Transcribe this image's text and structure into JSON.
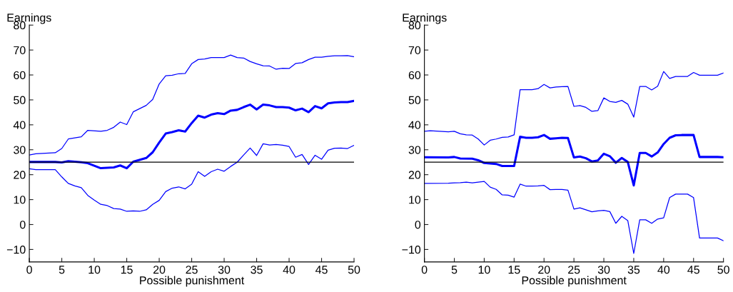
{
  "chart_data": [
    {
      "type": "line",
      "xlabel": "Possible punishment",
      "ylabel": "Earnings",
      "xlim": [
        0,
        50
      ],
      "ylim": [
        -15,
        80
      ],
      "xticks": [
        0,
        5,
        10,
        15,
        20,
        25,
        30,
        35,
        40,
        45,
        50
      ],
      "yticks": [
        -10,
        0,
        10,
        20,
        30,
        40,
        50,
        60,
        70,
        80
      ],
      "grid": false,
      "legend": false,
      "ref_lines": [
        {
          "axis": "y",
          "value": 25,
          "color": "#000000"
        }
      ],
      "series": [
        {
          "color": "#0000ff",
          "x": [
            0,
            1,
            4,
            5,
            6,
            8,
            9,
            11,
            12,
            13,
            14,
            15,
            16,
            18,
            19,
            20,
            21,
            22,
            23,
            24,
            25,
            26,
            27,
            28,
            29,
            30,
            31,
            32,
            33,
            34,
            35,
            36,
            37,
            38,
            39,
            40,
            41,
            42,
            43,
            44,
            45,
            46,
            47,
            48,
            49,
            50
          ],
          "values": [
            27.9,
            28.4,
            28.8,
            30.5,
            34.3,
            35.2,
            37.8,
            37.4,
            37.8,
            39,
            41.1,
            40.1,
            45.2,
            47.8,
            50.2,
            56.4,
            59.7,
            59.9,
            60.5,
            60.6,
            64.5,
            66.2,
            66.4,
            67,
            67,
            67,
            68,
            67,
            66.8,
            65.4,
            64.5,
            63.7,
            63.6,
            62.3,
            62.7,
            62.6,
            64.6,
            64.9,
            66.2,
            67.1,
            67.1,
            67.5,
            67.7,
            67.7,
            67.8,
            67.3
          ]
        },
        {
          "color": "#0000ff",
          "x": [
            0,
            4,
            5,
            6,
            8,
            9,
            11,
            13,
            14,
            15,
            16,
            18,
            19,
            20,
            21,
            22,
            23,
            24,
            25,
            26,
            27,
            28,
            29,
            30,
            31,
            32,
            33,
            34,
            35,
            36,
            37,
            38,
            39,
            40,
            41,
            42,
            43,
            44,
            45,
            46,
            47,
            48,
            49,
            50
          ],
          "values": [
            25.1,
            25.1,
            24.9,
            25.4,
            25,
            24.6,
            22.6,
            22.9,
            23.7,
            22.6,
            25.2,
            26.7,
            29,
            32.9,
            36.5,
            37.1,
            37.8,
            37.3,
            40.7,
            43.7,
            42.9,
            44.1,
            44.7,
            44.3,
            45.7,
            46,
            47.1,
            48.1,
            46.2,
            48.1,
            47.8,
            47.1,
            47.1,
            46.9,
            45.8,
            46.5,
            45.1,
            47.5,
            46.6,
            48.6,
            49,
            49.1,
            49.1,
            49.6
          ]
        },
        {
          "color": "#0000ff",
          "x": [
            0,
            1,
            4,
            5,
            6,
            7,
            8,
            9,
            10,
            11,
            12,
            13,
            14,
            15,
            16,
            17,
            18,
            19,
            20,
            21,
            22,
            23,
            24,
            25,
            26,
            27,
            28,
            29,
            30,
            31,
            32,
            33,
            34,
            35,
            36,
            37,
            38,
            39,
            40,
            41,
            42,
            43,
            44,
            45,
            46,
            47,
            48,
            49,
            50
          ],
          "values": [
            22.4,
            22,
            22,
            19.1,
            16.5,
            15.5,
            14.8,
            11.7,
            9.8,
            8.1,
            7.6,
            6.4,
            6.2,
            5.3,
            5.5,
            5.3,
            5.9,
            8.1,
            9.7,
            13.2,
            14.6,
            15.1,
            14.3,
            16.2,
            21.2,
            19.3,
            21.2,
            22.2,
            21.4,
            23.3,
            25,
            27.9,
            30.7,
            27.7,
            32.4,
            31.9,
            32.1,
            31.8,
            31.3,
            27,
            28.1,
            24.1,
            27.8,
            26.2,
            29.8,
            30.6,
            30.7,
            30.5,
            31.8
          ]
        }
      ]
    },
    {
      "type": "line",
      "xlabel": "Possible punishment",
      "ylabel": "Earnings",
      "xlim": [
        0,
        50
      ],
      "ylim": [
        -15,
        80
      ],
      "xticks": [
        0,
        5,
        10,
        15,
        20,
        25,
        30,
        35,
        40,
        45,
        50
      ],
      "yticks": [
        -10,
        0,
        10,
        20,
        30,
        40,
        50,
        60,
        70,
        80
      ],
      "grid": false,
      "legend": false,
      "ref_lines": [
        {
          "axis": "y",
          "value": 25,
          "color": "#000000"
        }
      ],
      "series": [
        {
          "color": "#0000ff",
          "x": [
            0,
            1,
            4,
            5,
            6,
            7,
            8,
            9,
            10,
            11,
            12,
            13,
            14,
            15,
            16,
            17,
            18,
            19,
            20,
            21,
            22,
            23,
            24,
            25,
            26,
            27,
            28,
            29,
            30,
            31,
            32,
            33,
            34,
            35,
            36,
            37,
            38,
            39,
            40,
            41,
            42,
            43,
            44,
            45,
            46,
            47,
            48,
            49,
            50
          ],
          "values": [
            37.4,
            37.6,
            37.2,
            37.4,
            36.4,
            36,
            35.9,
            34.3,
            31.9,
            33.8,
            34.3,
            35,
            35.1,
            36,
            54.1,
            54.1,
            54.1,
            54.5,
            56.2,
            54.8,
            55.2,
            55.3,
            55.4,
            47.4,
            47.7,
            47,
            45.4,
            45.7,
            50.8,
            49.4,
            49,
            49.8,
            48.3,
            43.1,
            55.4,
            55.4,
            54,
            55.5,
            61.4,
            58.6,
            59.4,
            59.4,
            59.4,
            61,
            59.9,
            59.9,
            59.9,
            59.9,
            60.8
          ]
        },
        {
          "color": "#0000ff",
          "x": [
            0,
            4,
            5,
            6,
            8,
            9,
            10,
            11,
            12,
            13,
            14,
            15,
            16,
            17,
            18,
            19,
            20,
            21,
            22,
            23,
            24,
            25,
            26,
            27,
            28,
            29,
            30,
            31,
            32,
            33,
            34,
            35,
            36,
            37,
            38,
            39,
            40,
            41,
            42,
            43,
            44,
            45,
            46,
            47,
            48,
            49,
            50
          ],
          "values": [
            27,
            26.9,
            27.1,
            26.5,
            26.4,
            25.8,
            24.7,
            24.5,
            24.3,
            23.5,
            23.5,
            23.5,
            35.2,
            34.8,
            34.8,
            35,
            35.9,
            34.4,
            34.6,
            34.8,
            34.7,
            26.9,
            27.3,
            26.6,
            25.3,
            25.7,
            28.4,
            27.4,
            24.8,
            26.7,
            25.1,
            15.7,
            28.7,
            28.7,
            27.3,
            28.9,
            32.3,
            34.8,
            35.8,
            35.9,
            35.9,
            35.9,
            27.1,
            27.1,
            27.1,
            27.1,
            27
          ]
        },
        {
          "color": "#0000ff",
          "x": [
            0,
            4,
            5,
            6,
            7,
            8,
            9,
            10,
            11,
            12,
            13,
            14,
            15,
            16,
            17,
            18,
            19,
            20,
            21,
            22,
            23,
            24,
            25,
            26,
            27,
            28,
            29,
            30,
            31,
            32,
            33,
            34,
            35,
            36,
            37,
            38,
            39,
            40,
            41,
            42,
            43,
            44,
            45,
            46,
            47,
            48,
            49,
            50
          ],
          "values": [
            16.5,
            16.6,
            16.7,
            16.8,
            17,
            16.7,
            17,
            17.3,
            15,
            14.1,
            11.9,
            11.8,
            11,
            16.2,
            15.4,
            15.4,
            15.5,
            15.7,
            14,
            14.1,
            14.1,
            13.8,
            6.2,
            6.7,
            5.9,
            5.1,
            5.5,
            5.7,
            5.2,
            0.5,
            3.3,
            1.6,
            -11.6,
            1.9,
            1.9,
            0.5,
            2.2,
            2.7,
            10.8,
            12.2,
            12.2,
            12.2,
            10.8,
            -5.4,
            -5.4,
            -5.4,
            -5.4,
            -6.5
          ]
        }
      ]
    }
  ]
}
